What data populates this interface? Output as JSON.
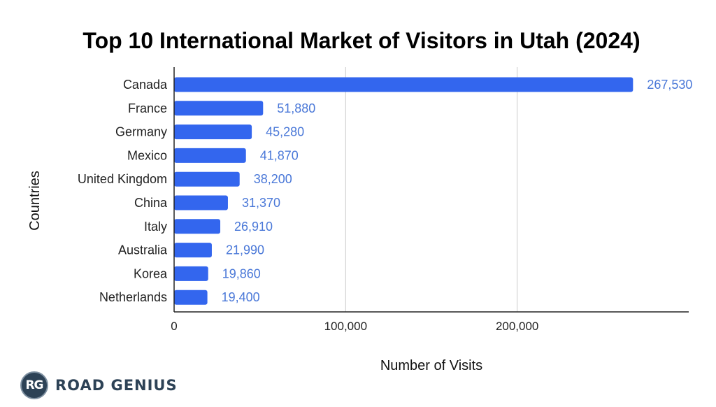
{
  "brand": {
    "badge": "RG",
    "name": "ROAD GENIUS"
  },
  "colors": {
    "bar": "#3366ee",
    "value_label": "#4a78d8",
    "grid": "#cccccc",
    "axis": "#222222"
  },
  "chart_data": {
    "type": "bar",
    "orientation": "horizontal",
    "title": "Top 10 International Market of Visitors in Utah (2024)",
    "xlabel": "Number of Visits",
    "ylabel": "Countries",
    "categories": [
      "Canada",
      "France",
      "Germany",
      "Mexico",
      "United Kingdom",
      "China",
      "Italy",
      "Australia",
      "Korea",
      "Netherlands"
    ],
    "values": [
      267530,
      51880,
      45280,
      41870,
      38200,
      31370,
      26910,
      21990,
      19860,
      19400
    ],
    "value_labels": [
      "267,530",
      "51,880",
      "45,280",
      "41,870",
      "38,200",
      "31,370",
      "26,910",
      "21,990",
      "19,860",
      "19,400"
    ],
    "xticks": [
      0,
      100000,
      200000
    ],
    "xtick_labels": [
      "0",
      "100,000",
      "200,000"
    ],
    "xlim": [
      0,
      300000
    ],
    "grid": true,
    "legend": "none"
  }
}
